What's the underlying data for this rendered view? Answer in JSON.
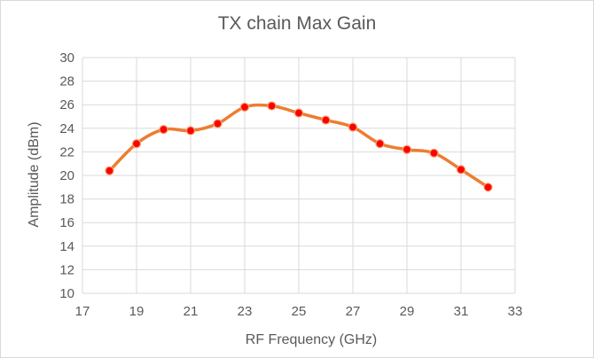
{
  "chart_data": {
    "type": "scatter",
    "title": "TX chain Max Gain",
    "xlabel": "RF Frequency (GHz)",
    "ylabel": "Amplitude (dBm)",
    "xlim": [
      17,
      33
    ],
    "ylim": [
      10,
      30
    ],
    "xticks": [
      "17",
      "19",
      "21",
      "23",
      "25",
      "27",
      "29",
      "31",
      "33"
    ],
    "yticks": [
      "10",
      "12",
      "14",
      "16",
      "18",
      "20",
      "22",
      "24",
      "26",
      "28",
      "30"
    ],
    "grid": {
      "vertical": true,
      "horizontal": true
    },
    "legend": "none",
    "series": [
      {
        "line_style": "smooth",
        "line_color": "#ed7d31",
        "marker_color": "#ff0000",
        "x": [
          18,
          19,
          20,
          21,
          22,
          23,
          24,
          25,
          26,
          27,
          28,
          29,
          30,
          31,
          32
        ],
        "y": [
          20.4,
          22.7,
          23.9,
          23.8,
          24.4,
          25.8,
          25.9,
          25.3,
          24.7,
          24.1,
          22.7,
          22.2,
          21.9,
          20.5,
          19.0
        ]
      }
    ]
  }
}
